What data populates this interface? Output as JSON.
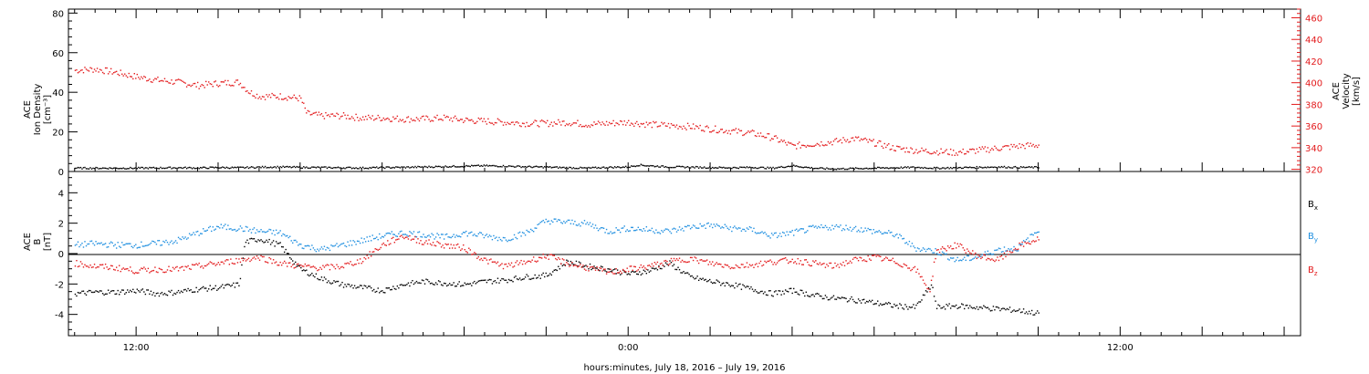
{
  "colors": {
    "black": "#000000",
    "red": "#e31a1c",
    "blue": "#1f8fe0"
  },
  "chart_data": [
    {
      "type": "scatter",
      "panel": "top",
      "ylabel_lines": [
        "ACE",
        "Ion Density",
        "[cm⁻³]"
      ],
      "ylabel2_lines": [
        "ACE",
        "Velocity",
        "[km/s]"
      ],
      "ylim": [
        0,
        82
      ],
      "yticks": [
        0,
        20,
        40,
        60,
        80
      ],
      "ylim2": [
        318,
        468
      ],
      "yticks2": [
        320,
        340,
        360,
        380,
        400,
        420,
        440,
        460
      ],
      "series": [
        {
          "name": "",
          "axis": "left",
          "color": "#000000",
          "points": [
            [
              -3,
              2.0
            ],
            [
              -2,
              2.0
            ],
            [
              -1,
              2.0
            ],
            [
              0,
              2.0
            ],
            [
              1,
              2.1
            ],
            [
              2,
              2.2
            ],
            [
              3,
              2.1
            ],
            [
              4,
              2.3
            ],
            [
              5,
              2.2
            ],
            [
              6,
              2.5
            ],
            [
              7,
              2.6
            ],
            [
              8,
              2.4
            ],
            [
              9,
              2.3
            ],
            [
              10,
              2.2
            ],
            [
              11,
              2.1
            ],
            [
              12,
              2.3
            ],
            [
              13,
              2.4
            ],
            [
              14,
              2.6
            ],
            [
              15,
              2.8
            ],
            [
              16,
              3.0
            ],
            [
              17,
              3.2
            ],
            [
              18,
              3.0
            ],
            [
              19,
              2.7
            ],
            [
              20,
              2.5
            ],
            [
              21,
              2.2
            ],
            [
              22,
              2.0
            ],
            [
              23,
              2.4
            ],
            [
              24,
              2.6
            ],
            [
              24.5,
              3.6
            ],
            [
              25,
              3.2
            ],
            [
              26,
              2.6
            ],
            [
              27,
              2.5
            ],
            [
              28,
              2.3
            ],
            [
              29,
              2.2
            ],
            [
              30,
              2.4
            ],
            [
              31,
              2.0
            ],
            [
              32,
              3.2
            ],
            [
              33,
              2.0
            ],
            [
              34,
              1.6
            ],
            [
              35,
              1.8
            ],
            [
              36,
              2.0
            ],
            [
              37,
              2.2
            ],
            [
              38,
              2.4
            ],
            [
              39,
              2.0
            ],
            [
              40,
              2.2
            ],
            [
              41,
              2.4
            ],
            [
              42,
              2.6
            ],
            [
              43,
              2.4
            ],
            [
              44,
              2.4
            ]
          ]
        },
        {
          "name": "",
          "axis": "right",
          "color": "#e31a1c",
          "points": [
            [
              -3,
              412
            ],
            [
              -2,
              413
            ],
            [
              -1,
              410
            ],
            [
              0,
              406
            ],
            [
              1,
              403
            ],
            [
              2,
              401
            ],
            [
              3,
              398
            ],
            [
              4,
              400
            ],
            [
              5,
              401
            ],
            [
              5.5,
              392
            ],
            [
              6,
              388
            ],
            [
              7,
              388
            ],
            [
              8,
              386
            ],
            [
              8.3,
              372
            ],
            [
              9,
              370
            ],
            [
              10,
              370
            ],
            [
              11,
              368
            ],
            [
              12,
              368
            ],
            [
              13,
              367
            ],
            [
              14,
              367
            ],
            [
              15,
              368
            ],
            [
              16,
              366
            ],
            [
              17,
              365
            ],
            [
              18,
              364
            ],
            [
              19,
              363
            ],
            [
              20,
              363
            ],
            [
              21,
              364
            ],
            [
              22,
              362
            ],
            [
              23,
              363
            ],
            [
              24,
              364
            ],
            [
              25,
              362
            ],
            [
              26,
              361
            ],
            [
              27,
              360
            ],
            [
              28,
              358
            ],
            [
              29,
              356
            ],
            [
              30,
              354
            ],
            [
              31,
              350
            ],
            [
              32,
              342
            ],
            [
              33,
              344
            ],
            [
              34,
              346
            ],
            [
              35,
              349
            ],
            [
              36,
              345
            ],
            [
              37,
              340
            ],
            [
              38,
              338
            ],
            [
              39,
              337
            ],
            [
              40,
              336
            ],
            [
              41,
              338
            ],
            [
              42,
              340
            ],
            [
              43,
              342
            ],
            [
              44,
              343
            ]
          ]
        }
      ]
    },
    {
      "type": "scatter",
      "panel": "bottom",
      "ylabel_lines": [
        "ACE",
        "B",
        "[nT]"
      ],
      "ylim": [
        -5.4,
        5.4
      ],
      "yticks": [
        -4,
        -2,
        0,
        2,
        4
      ],
      "legend": [
        {
          "label": "B",
          "sub": "x",
          "color": "#000000"
        },
        {
          "label": "B",
          "sub": "y",
          "color": "#1f8fe0"
        },
        {
          "label": "B",
          "sub": "z",
          "color": "#e31a1c"
        }
      ],
      "series": [
        {
          "name": "Bx",
          "color": "#000000",
          "points": [
            [
              -3,
              -2.6
            ],
            [
              -2,
              -2.5
            ],
            [
              -1,
              -2.5
            ],
            [
              0,
              -2.4
            ],
            [
              1,
              -2.6
            ],
            [
              2,
              -2.5
            ],
            [
              3,
              -2.3
            ],
            [
              4,
              -2.2
            ],
            [
              5,
              -2.0
            ],
            [
              5.3,
              0.8
            ],
            [
              6,
              1.0
            ],
            [
              7,
              0.6
            ],
            [
              8,
              -1.0
            ],
            [
              9,
              -1.6
            ],
            [
              10,
              -2.0
            ],
            [
              11,
              -2.2
            ],
            [
              12,
              -2.4
            ],
            [
              13,
              -2.0
            ],
            [
              14,
              -1.8
            ],
            [
              15,
              -1.9
            ],
            [
              16,
              -2.0
            ],
            [
              17,
              -1.8
            ],
            [
              18,
              -1.7
            ],
            [
              19,
              -1.5
            ],
            [
              20,
              -1.4
            ],
            [
              21,
              -0.5
            ],
            [
              22,
              -0.8
            ],
            [
              23,
              -1.0
            ],
            [
              24,
              -1.3
            ],
            [
              25,
              -1.1
            ],
            [
              26,
              -0.6
            ],
            [
              27,
              -1.5
            ],
            [
              28,
              -1.8
            ],
            [
              29,
              -2.0
            ],
            [
              30,
              -2.3
            ],
            [
              31,
              -2.6
            ],
            [
              32,
              -2.4
            ],
            [
              33,
              -2.7
            ],
            [
              34,
              -2.9
            ],
            [
              35,
              -3.0
            ],
            [
              36,
              -3.2
            ],
            [
              37,
              -3.4
            ],
            [
              38,
              -3.5
            ],
            [
              38.8,
              -2.0
            ],
            [
              39,
              -3.5
            ],
            [
              40,
              -3.4
            ],
            [
              41,
              -3.5
            ],
            [
              42,
              -3.6
            ],
            [
              43,
              -3.7
            ],
            [
              44,
              -3.9
            ]
          ]
        },
        {
          "name": "By",
          "color": "#1f8fe0",
          "points": [
            [
              -3,
              0.6
            ],
            [
              -2,
              0.7
            ],
            [
              -1,
              0.6
            ],
            [
              0,
              0.6
            ],
            [
              1,
              0.7
            ],
            [
              2,
              0.9
            ],
            [
              3,
              1.4
            ],
            [
              4,
              1.8
            ],
            [
              5,
              1.7
            ],
            [
              6,
              1.5
            ],
            [
              7,
              1.4
            ],
            [
              8,
              0.6
            ],
            [
              9,
              0.3
            ],
            [
              10,
              0.6
            ],
            [
              11,
              0.9
            ],
            [
              12,
              1.2
            ],
            [
              13,
              1.4
            ],
            [
              14,
              1.3
            ],
            [
              15,
              1.1
            ],
            [
              16,
              1.4
            ],
            [
              17,
              1.2
            ],
            [
              18,
              1.0
            ],
            [
              19,
              1.4
            ],
            [
              20,
              2.2
            ],
            [
              21,
              2.1
            ],
            [
              22,
              2.0
            ],
            [
              23,
              1.5
            ],
            [
              24,
              1.7
            ],
            [
              25,
              1.6
            ],
            [
              26,
              1.5
            ],
            [
              27,
              1.8
            ],
            [
              28,
              1.9
            ],
            [
              29,
              1.7
            ],
            [
              30,
              1.6
            ],
            [
              31,
              1.2
            ],
            [
              32,
              1.4
            ],
            [
              33,
              1.7
            ],
            [
              34,
              1.8
            ],
            [
              35,
              1.7
            ],
            [
              36,
              1.5
            ],
            [
              37,
              1.3
            ],
            [
              38,
              0.4
            ],
            [
              39,
              0.2
            ],
            [
              40,
              -0.4
            ],
            [
              41,
              -0.2
            ],
            [
              42,
              0.3
            ],
            [
              43,
              0.4
            ],
            [
              44,
              1.6
            ]
          ]
        },
        {
          "name": "Bz",
          "color": "#e31a1c",
          "points": [
            [
              -3,
              -0.6
            ],
            [
              -2,
              -0.8
            ],
            [
              -1,
              -0.9
            ],
            [
              0,
              -1.1
            ],
            [
              1,
              -1.0
            ],
            [
              2,
              -1.0
            ],
            [
              3,
              -0.8
            ],
            [
              4,
              -0.6
            ],
            [
              5,
              -0.4
            ],
            [
              6,
              -0.2
            ],
            [
              7,
              -0.6
            ],
            [
              8,
              -0.8
            ],
            [
              9,
              -0.9
            ],
            [
              10,
              -0.8
            ],
            [
              11,
              -0.4
            ],
            [
              12,
              0.6
            ],
            [
              13,
              1.2
            ],
            [
              14,
              0.8
            ],
            [
              15,
              0.6
            ],
            [
              16,
              0.4
            ],
            [
              17,
              -0.4
            ],
            [
              18,
              -0.8
            ],
            [
              19,
              -0.5
            ],
            [
              20,
              -0.1
            ],
            [
              21,
              -0.6
            ],
            [
              22,
              -0.9
            ],
            [
              23,
              -1.2
            ],
            [
              24,
              -1.0
            ],
            [
              25,
              -0.8
            ],
            [
              26,
              -0.5
            ],
            [
              27,
              -0.3
            ],
            [
              28,
              -0.6
            ],
            [
              29,
              -0.8
            ],
            [
              30,
              -0.7
            ],
            [
              31,
              -0.5
            ],
            [
              32,
              -0.4
            ],
            [
              33,
              -0.6
            ],
            [
              34,
              -0.8
            ],
            [
              35,
              -0.4
            ],
            [
              36,
              -0.2
            ],
            [
              37,
              -0.5
            ],
            [
              38,
              -1.0
            ],
            [
              38.7,
              -2.4
            ],
            [
              39,
              0.2
            ],
            [
              40,
              0.6
            ],
            [
              41,
              -0.1
            ],
            [
              42,
              -0.4
            ],
            [
              43,
              0.5
            ],
            [
              44,
              1.0
            ]
          ]
        }
      ]
    }
  ],
  "x_axis": {
    "tick_labels": [
      {
        "hour": 0,
        "label": "12:00"
      },
      {
        "hour": 24,
        "label": "0:00"
      },
      {
        "hour": 48,
        "label": "12:00"
      }
    ],
    "label": "hours:minutes, July 18, 2016 – July 19, 2016",
    "xlim": [
      -3.3,
      56.8
    ],
    "tick_step": 4
  }
}
